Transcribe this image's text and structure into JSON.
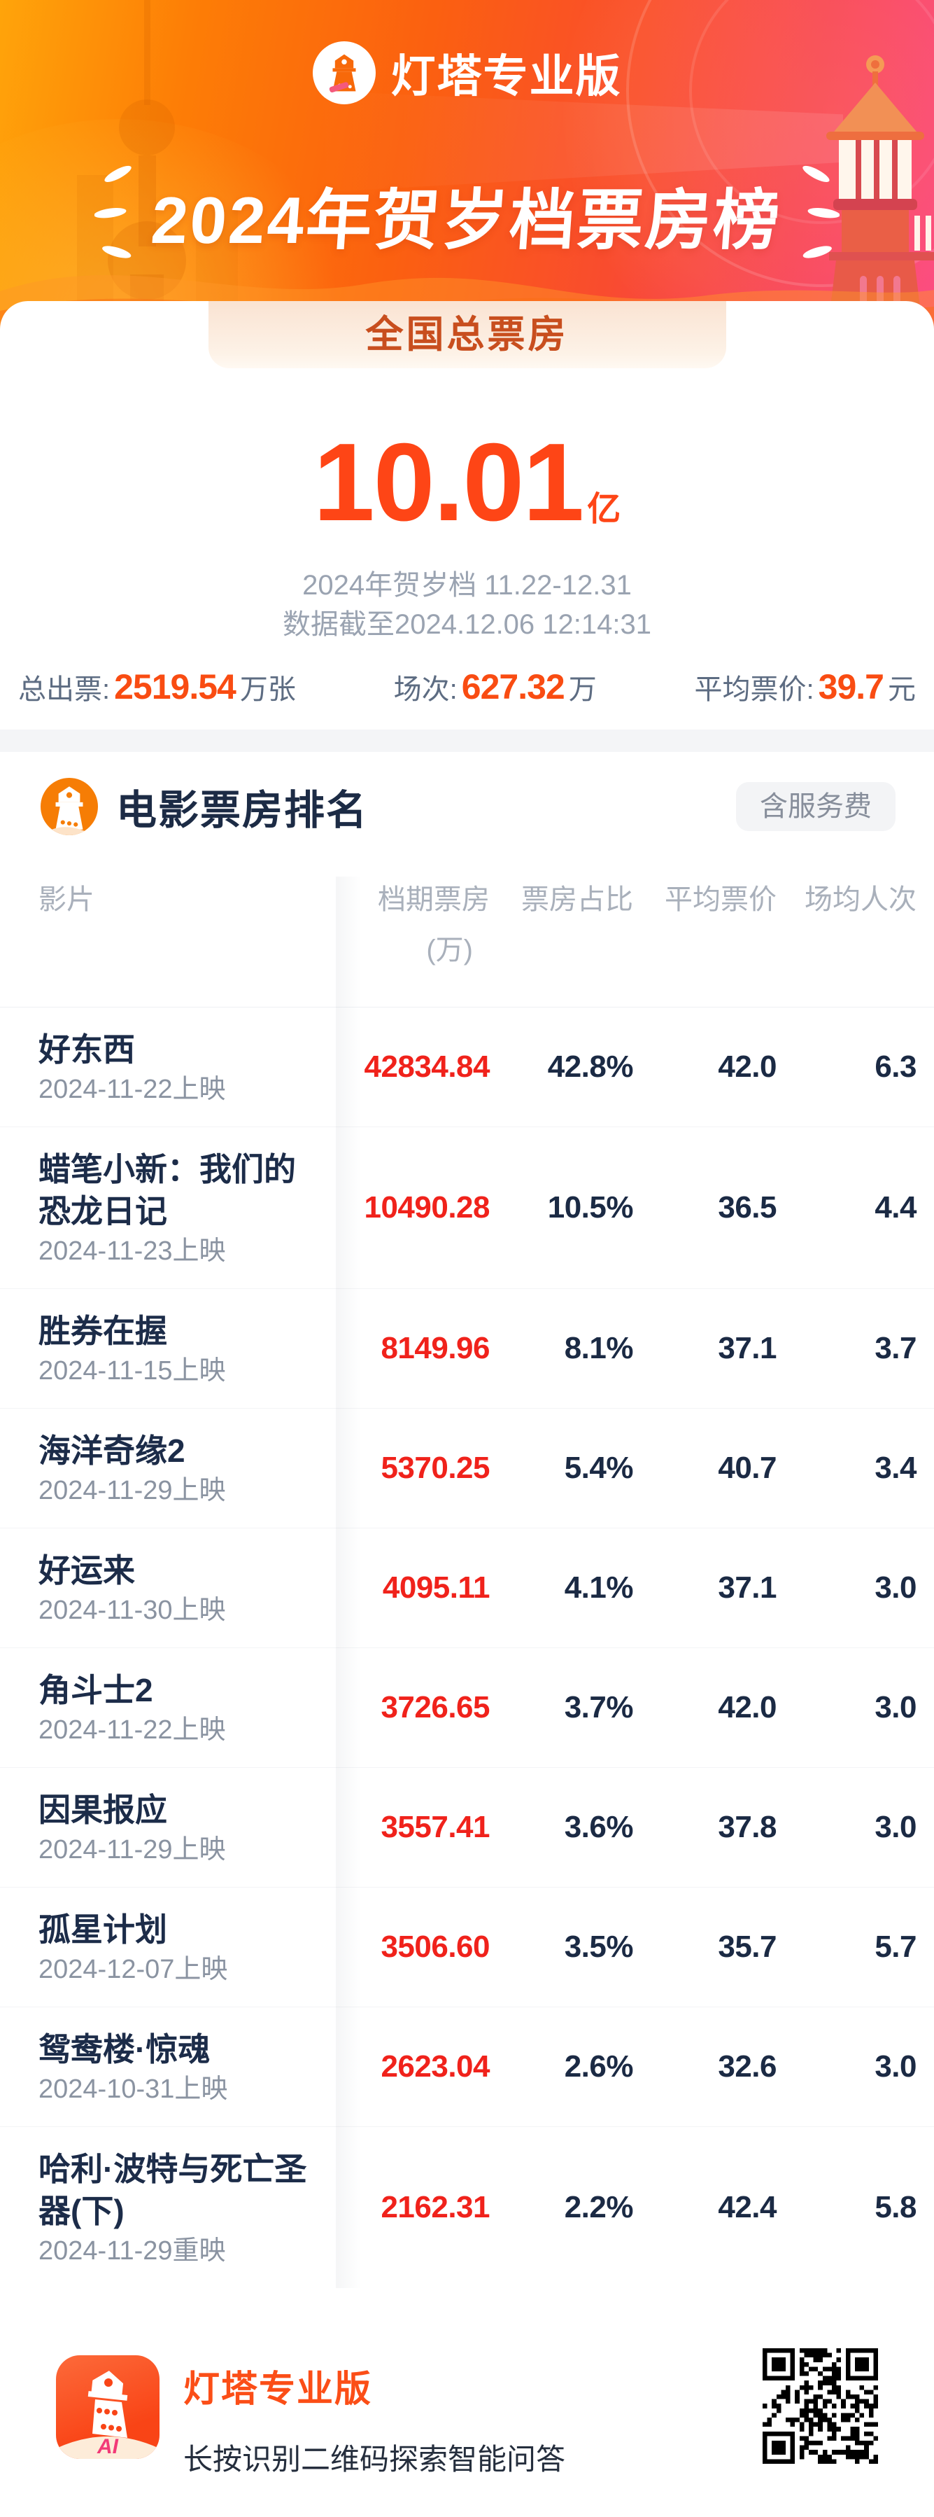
{
  "colors": {
    "accent_orange": "#FB4E17",
    "big_number_orange": "#FE4516",
    "highlight_red": "#F0221B",
    "navy_text": "#1C2B45",
    "gray_text": "#8A93A1",
    "badge_text": "#C84E1E",
    "hero_gradient": [
      "#FFA40A",
      "#FB6010",
      "#F73E60",
      "#FB3E8D"
    ]
  },
  "header": {
    "brand": "灯塔专业版",
    "title": "2024年贺岁档票房榜",
    "badge": "全国总票房"
  },
  "summary": {
    "total_value": "10.01",
    "total_unit": "亿",
    "period": "2024年贺岁档 11.22-12.31",
    "cutoff": "数据截至2024.12.06 12:14:31",
    "stats": [
      {
        "label": "总出票:",
        "value": "2519.54",
        "unit": "万张"
      },
      {
        "label": "场次:",
        "value": "627.32",
        "unit": "万"
      },
      {
        "label": "平均票价:",
        "value": "39.7",
        "unit": "元"
      }
    ]
  },
  "ranking": {
    "title": "电影票房排名",
    "fee_badge": "含服务费",
    "columns": {
      "film": "影片",
      "box": "档期票房",
      "box_unit": "(万)",
      "share": "票房占比",
      "price": "平均票价",
      "attendance": "场均人次"
    },
    "rows": [
      {
        "title": "好东西",
        "date": "2024-11-22上映",
        "box": "42834.84",
        "share": "42.8%",
        "price": "42.0",
        "attendance": "6.3"
      },
      {
        "title": "蜡笔小新：我们的恐龙日记",
        "date": "2024-11-23上映",
        "box": "10490.28",
        "share": "10.5%",
        "price": "36.5",
        "attendance": "4.4"
      },
      {
        "title": "胜券在握",
        "date": "2024-11-15上映",
        "box": "8149.96",
        "share": "8.1%",
        "price": "37.1",
        "attendance": "3.7"
      },
      {
        "title": "海洋奇缘2",
        "date": "2024-11-29上映",
        "box": "5370.25",
        "share": "5.4%",
        "price": "40.7",
        "attendance": "3.4"
      },
      {
        "title": "好运来",
        "date": "2024-11-30上映",
        "box": "4095.11",
        "share": "4.1%",
        "price": "37.1",
        "attendance": "3.0"
      },
      {
        "title": "角斗士2",
        "date": "2024-11-22上映",
        "box": "3726.65",
        "share": "3.7%",
        "price": "42.0",
        "attendance": "3.0"
      },
      {
        "title": "因果报应",
        "date": "2024-11-29上映",
        "box": "3557.41",
        "share": "3.6%",
        "price": "37.8",
        "attendance": "3.0"
      },
      {
        "title": "孤星计划",
        "date": "2024-12-07上映",
        "box": "3506.60",
        "share": "3.5%",
        "price": "35.7",
        "attendance": "5.7"
      },
      {
        "title": "鸳鸯楼·惊魂",
        "date": "2024-10-31上映",
        "box": "2623.04",
        "share": "2.6%",
        "price": "32.6",
        "attendance": "3.0"
      },
      {
        "title": "哈利·波特与死亡圣器(下)",
        "date": "2024-11-29重映",
        "box": "2162.31",
        "share": "2.2%",
        "price": "42.4",
        "attendance": "5.8"
      }
    ]
  },
  "footer": {
    "brand": "灯塔专业版",
    "ai_label": "AI",
    "tip": "长按识别二维码探索智能问答"
  }
}
